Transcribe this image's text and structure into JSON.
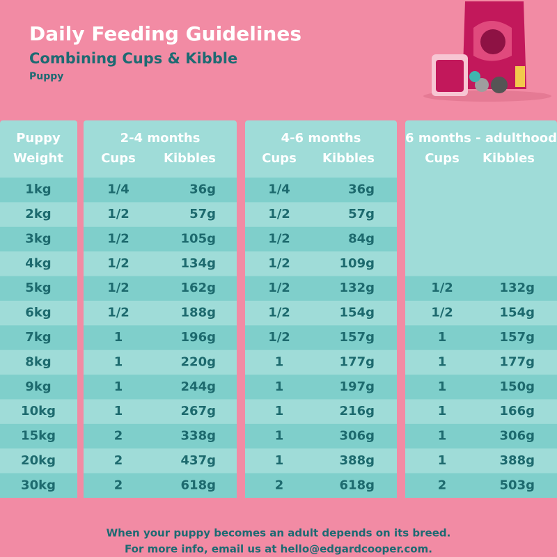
{
  "header": {
    "title": "Daily Feeding Guidelines",
    "subtitle": "Combining Cups & Kibble",
    "category": "Puppy"
  },
  "table": {
    "weight_header": [
      "Puppy",
      "Weight"
    ],
    "groups": [
      {
        "title": "2-4 months",
        "cups": "Cups",
        "kibbles": "Kibbles"
      },
      {
        "title": "4-6 months",
        "cups": "Cups",
        "kibbles": "Kibbles"
      },
      {
        "title": "6 months - adulthood",
        "cups": "Cups",
        "kibbles": "Kibbles"
      }
    ],
    "rows": [
      [
        "1kg",
        "1/4",
        "36g",
        "1/4",
        "36g",
        null,
        null
      ],
      [
        "2kg",
        "1/2",
        "57g",
        "1/2",
        "57g",
        null,
        null
      ],
      [
        "3kg",
        "1/2",
        "105g",
        "1/2",
        "84g",
        null,
        null
      ],
      [
        "4kg",
        "1/2",
        "134g",
        "1/2",
        "109g",
        null,
        null
      ],
      [
        "5kg",
        "1/2",
        "162g",
        "1/2",
        "132g",
        "1/2",
        "132g"
      ],
      [
        "6kg",
        "1/2",
        "188g",
        "1/2",
        "154g",
        "1/2",
        "154g"
      ],
      [
        "7kg",
        "1",
        "196g",
        "1/2",
        "157g",
        "1",
        "157g"
      ],
      [
        "8kg",
        "1",
        "220g",
        "1",
        "177g",
        "1",
        "177g"
      ],
      [
        "9kg",
        "1",
        "244g",
        "1",
        "197g",
        "1",
        "150g"
      ],
      [
        "10kg",
        "1",
        "267g",
        "1",
        "216g",
        "1",
        "166g"
      ],
      [
        "15kg",
        "2",
        "338g",
        "1",
        "306g",
        "1",
        "306g"
      ],
      [
        "20kg",
        "2",
        "437g",
        "1",
        "388g",
        "1",
        "388g"
      ],
      [
        "30kg",
        "2",
        "618g",
        "2",
        "618g",
        "2",
        "503g"
      ]
    ]
  },
  "footer": [
    "When your puppy becomes an adult depends on its breed.",
    "For more info, email us at hello@edgardcooper.com."
  ]
}
